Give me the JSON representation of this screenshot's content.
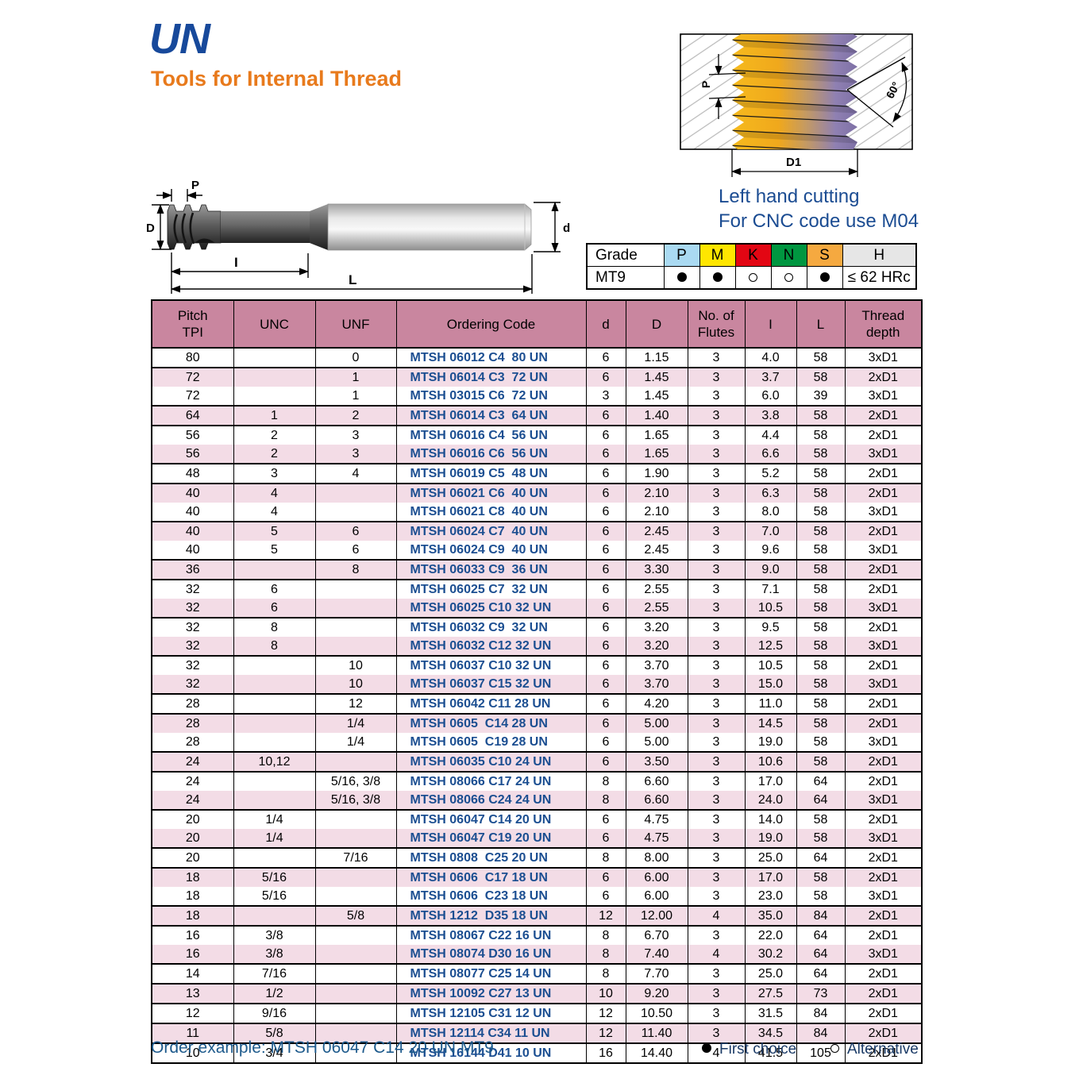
{
  "page": {
    "title": "UN",
    "subtitle": "Tools for Internal Thread"
  },
  "cutting_note": {
    "line1": "Left hand cutting",
    "line2": "For CNC code use M04"
  },
  "tool_diagram": {
    "labels": {
      "pitch": "P",
      "head_dia": "D",
      "cut_length": "I",
      "overall_length": "L",
      "shank_dia": "d"
    }
  },
  "thread_diagram": {
    "labels": {
      "pitch": "P",
      "angle": "60°",
      "major_dia": "D1"
    }
  },
  "grade_table": {
    "header": [
      "Grade",
      "P",
      "M",
      "K",
      "N",
      "S",
      "H"
    ],
    "header_colors": {
      "P": "#aadaf2",
      "M": "#ffe600",
      "K": "#e30613",
      "N": "#009640",
      "S": "#f5a940",
      "H": "#e6e6e6"
    },
    "row": {
      "grade": "MT9",
      "marks": [
        "filled",
        "filled",
        "open",
        "open",
        "filled"
      ],
      "hardness": "≤ 62 HRc"
    }
  },
  "table": {
    "columns": [
      {
        "key": "pitch",
        "label": "Pitch\nTPI"
      },
      {
        "key": "unc",
        "label": "UNC"
      },
      {
        "key": "unf",
        "label": "UNF"
      },
      {
        "key": "code",
        "label": "Ordering Code"
      },
      {
        "key": "d",
        "label": "d"
      },
      {
        "key": "D",
        "label": "D"
      },
      {
        "key": "flutes",
        "label": "No. of\nFlutes"
      },
      {
        "key": "l",
        "label": "I"
      },
      {
        "key": "L",
        "label": "L"
      },
      {
        "key": "depth",
        "label": "Thread\ndepth"
      }
    ],
    "rows": [
      {
        "cells": [
          "80",
          "",
          "0",
          "MTSH 06012 C4  80 UN",
          "6",
          "1.15",
          "3",
          "4.0",
          "58",
          "3xD1"
        ],
        "end": true
      },
      {
        "cells": [
          "72",
          "",
          "1",
          "MTSH 06014 C3  72 UN",
          "6",
          "1.45",
          "3",
          "3.7",
          "58",
          "2xD1"
        ],
        "end": false
      },
      {
        "cells": [
          "72",
          "",
          "1",
          "MTSH 03015 C6  72 UN",
          "3",
          "1.45",
          "3",
          "6.0",
          "39",
          "3xD1"
        ],
        "end": true
      },
      {
        "cells": [
          "64",
          "1",
          "2",
          "MTSH 06014 C3  64 UN",
          "6",
          "1.40",
          "3",
          "3.8",
          "58",
          "2xD1"
        ],
        "end": true
      },
      {
        "cells": [
          "56",
          "2",
          "3",
          "MTSH 06016 C4  56 UN",
          "6",
          "1.65",
          "3",
          "4.4",
          "58",
          "2xD1"
        ],
        "end": false
      },
      {
        "cells": [
          "56",
          "2",
          "3",
          "MTSH 06016 C6  56 UN",
          "6",
          "1.65",
          "3",
          "6.6",
          "58",
          "3xD1"
        ],
        "end": true
      },
      {
        "cells": [
          "48",
          "3",
          "4",
          "MTSH 06019 C5  48 UN",
          "6",
          "1.90",
          "3",
          "5.2",
          "58",
          "2xD1"
        ],
        "end": true
      },
      {
        "cells": [
          "40",
          "4",
          "",
          "MTSH 06021 C6  40 UN",
          "6",
          "2.10",
          "3",
          "6.3",
          "58",
          "2xD1"
        ],
        "end": false
      },
      {
        "cells": [
          "40",
          "4",
          "",
          "MTSH 06021 C8  40 UN",
          "6",
          "2.10",
          "3",
          "8.0",
          "58",
          "3xD1"
        ],
        "end": true
      },
      {
        "cells": [
          "40",
          "5",
          "6",
          "MTSH 06024 C7  40 UN",
          "6",
          "2.45",
          "3",
          "7.0",
          "58",
          "2xD1"
        ],
        "end": false
      },
      {
        "cells": [
          "40",
          "5",
          "6",
          "MTSH 06024 C9  40 UN",
          "6",
          "2.45",
          "3",
          "9.6",
          "58",
          "3xD1"
        ],
        "end": true
      },
      {
        "cells": [
          "36",
          "",
          "8",
          "MTSH 06033 C9  36 UN",
          "6",
          "3.30",
          "3",
          "9.0",
          "58",
          "2xD1"
        ],
        "end": true
      },
      {
        "cells": [
          "32",
          "6",
          "",
          "MTSH 06025 C7  32 UN",
          "6",
          "2.55",
          "3",
          "7.1",
          "58",
          "2xD1"
        ],
        "end": false
      },
      {
        "cells": [
          "32",
          "6",
          "",
          "MTSH 06025 C10 32 UN",
          "6",
          "2.55",
          "3",
          "10.5",
          "58",
          "3xD1"
        ],
        "end": true
      },
      {
        "cells": [
          "32",
          "8",
          "",
          "MTSH 06032 C9  32 UN",
          "6",
          "3.20",
          "3",
          "9.5",
          "58",
          "2xD1"
        ],
        "end": false
      },
      {
        "cells": [
          "32",
          "8",
          "",
          "MTSH 06032 C12 32 UN",
          "6",
          "3.20",
          "3",
          "12.5",
          "58",
          "3xD1"
        ],
        "end": true
      },
      {
        "cells": [
          "32",
          "",
          "10",
          "MTSH 06037 C10 32 UN",
          "6",
          "3.70",
          "3",
          "10.5",
          "58",
          "2xD1"
        ],
        "end": false
      },
      {
        "cells": [
          "32",
          "",
          "10",
          "MTSH 06037 C15 32 UN",
          "6",
          "3.70",
          "3",
          "15.0",
          "58",
          "3xD1"
        ],
        "end": true
      },
      {
        "cells": [
          "28",
          "",
          "12",
          "MTSH 06042 C11 28 UN",
          "6",
          "4.20",
          "3",
          "11.0",
          "58",
          "2xD1"
        ],
        "end": true
      },
      {
        "cells": [
          "28",
          "",
          "1/4",
          "MTSH 0605  C14 28 UN",
          "6",
          "5.00",
          "3",
          "14.5",
          "58",
          "2xD1"
        ],
        "end": false
      },
      {
        "cells": [
          "28",
          "",
          "1/4",
          "MTSH 0605  C19 28 UN",
          "6",
          "5.00",
          "3",
          "19.0",
          "58",
          "3xD1"
        ],
        "end": true
      },
      {
        "cells": [
          "24",
          "10,12",
          "",
          "MTSH 06035 C10 24 UN",
          "6",
          "3.50",
          "3",
          "10.6",
          "58",
          "2xD1"
        ],
        "end": true
      },
      {
        "cells": [
          "24",
          "",
          "5/16, 3/8",
          "MTSH 08066 C17 24 UN",
          "8",
          "6.60",
          "3",
          "17.0",
          "64",
          "2xD1"
        ],
        "end": false
      },
      {
        "cells": [
          "24",
          "",
          "5/16, 3/8",
          "MTSH 08066 C24 24 UN",
          "8",
          "6.60",
          "3",
          "24.0",
          "64",
          "3xD1"
        ],
        "end": true
      },
      {
        "cells": [
          "20",
          "1/4",
          "",
          "MTSH 06047 C14 20 UN",
          "6",
          "4.75",
          "3",
          "14.0",
          "58",
          "2xD1"
        ],
        "end": false
      },
      {
        "cells": [
          "20",
          "1/4",
          "",
          "MTSH 06047 C19 20 UN",
          "6",
          "4.75",
          "3",
          "19.0",
          "58",
          "3xD1"
        ],
        "end": true
      },
      {
        "cells": [
          "20",
          "",
          "7/16",
          "MTSH 0808  C25 20 UN",
          "8",
          "8.00",
          "3",
          "25.0",
          "64",
          "2xD1"
        ],
        "end": true
      },
      {
        "cells": [
          "18",
          "5/16",
          "",
          "MTSH 0606  C17 18 UN",
          "6",
          "6.00",
          "3",
          "17.0",
          "58",
          "2xD1"
        ],
        "end": false
      },
      {
        "cells": [
          "18",
          "5/16",
          "",
          "MTSH 0606  C23 18 UN",
          "6",
          "6.00",
          "3",
          "23.0",
          "58",
          "3xD1"
        ],
        "end": true
      },
      {
        "cells": [
          "18",
          "",
          "5/8",
          "MTSH 1212  D35 18 UN",
          "12",
          "12.00",
          "4",
          "35.0",
          "84",
          "2xD1"
        ],
        "end": true
      },
      {
        "cells": [
          "16",
          "3/8",
          "",
          "MTSH 08067 C22 16 UN",
          "8",
          "6.70",
          "3",
          "22.0",
          "64",
          "2xD1"
        ],
        "end": false
      },
      {
        "cells": [
          "16",
          "3/8",
          "",
          "MTSH 08074 D30 16 UN",
          "8",
          "7.40",
          "4",
          "30.2",
          "64",
          "3xD1"
        ],
        "end": true
      },
      {
        "cells": [
          "14",
          "7/16",
          "",
          "MTSH 08077 C25 14 UN",
          "8",
          "7.70",
          "3",
          "25.0",
          "64",
          "2xD1"
        ],
        "end": true
      },
      {
        "cells": [
          "13",
          "1/2",
          "",
          "MTSH 10092 C27 13 UN",
          "10",
          "9.20",
          "3",
          "27.5",
          "73",
          "2xD1"
        ],
        "end": true
      },
      {
        "cells": [
          "12",
          "9/16",
          "",
          "MTSH 12105 C31 12 UN",
          "12",
          "10.50",
          "3",
          "31.5",
          "84",
          "2xD1"
        ],
        "end": true
      },
      {
        "cells": [
          "11",
          "5/8",
          "",
          "MTSH 12114 C34 11 UN",
          "12",
          "11.40",
          "3",
          "34.5",
          "84",
          "2xD1"
        ],
        "end": true
      },
      {
        "cells": [
          "10",
          "3/4",
          "",
          "MTSH 16144 D41 10 UN",
          "16",
          "14.40",
          "4",
          "41.5",
          "105",
          "2xD1"
        ],
        "end": false
      }
    ]
  },
  "footer": {
    "order_example": "Order example: MTSH 06047 C14 20 UN MT9",
    "legend": [
      {
        "symbol": "filled",
        "label": "First choice"
      },
      {
        "symbol": "open",
        "label": "Alternative"
      }
    ]
  },
  "colors": {
    "title_blue": "#17499b",
    "subtitle_orange": "#e87a1c",
    "table_header_pink": "#c9869f",
    "table_row_pink": "#f3dce6",
    "code_blue": "#1b4e91",
    "note_blue": "#1b4c92"
  }
}
